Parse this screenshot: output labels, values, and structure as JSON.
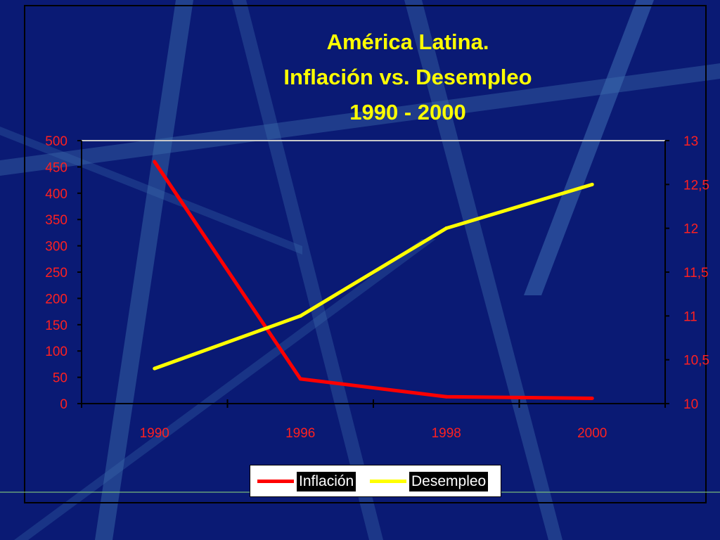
{
  "colors": {
    "background": "#0a1a74",
    "title": "#ffff00",
    "axis_text": "#ff2020",
    "inflation_line": "#ff0000",
    "unemployment_line": "#ffff00"
  },
  "chart_data": {
    "type": "line",
    "title_lines": [
      "América Latina.",
      "Inflación vs. Desempleo",
      "1990 - 2000"
    ],
    "categories": [
      "1990",
      "1996",
      "1998",
      "2000"
    ],
    "left_axis": {
      "ylim": [
        0,
        500
      ],
      "ticks": [
        "0",
        "50",
        "100",
        "150",
        "200",
        "250",
        "300",
        "350",
        "400",
        "450",
        "500"
      ]
    },
    "right_axis": {
      "ylim": [
        10,
        13
      ],
      "ticks": [
        "10",
        "10,5",
        "11",
        "11,5",
        "12",
        "12,5",
        "13"
      ]
    },
    "series": [
      {
        "name": "Inflación",
        "axis": "left",
        "values": [
          460,
          47,
          13,
          10
        ]
      },
      {
        "name": "Desempleo",
        "axis": "right",
        "values": [
          10.4,
          11.0,
          12.0,
          12.5
        ]
      }
    ],
    "grid": "top gridline only",
    "legend_position": "bottom"
  }
}
